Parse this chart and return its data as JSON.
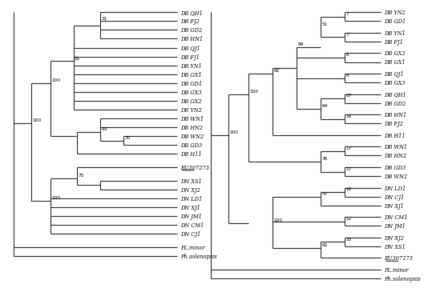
{
  "bg_color": "#ffffff",
  "line_color": "#2a2a2a",
  "text_color": "#000000",
  "lw": 0.8,
  "font_size": 4.8,
  "bs_font_size": 4.2,
  "mp_taxa": [
    "DB QH1",
    "DB FJ2",
    "DB GD2",
    "DB HN1",
    "DB QJ1",
    "DB FJ1",
    "DB YN1",
    "DB GX1",
    "DB GD1",
    "DB GX3",
    "DB GX2",
    "DB YN2",
    "DB WN1",
    "DB HN2",
    "DB WN2",
    "DB GD3",
    "DB H11",
    "EU307273",
    "DN XS1",
    "DN XJ2",
    "DN LD1",
    "DN XJ1",
    "DN JM1",
    "DN CM1",
    "DN CJ1",
    "PL.minor",
    "Ph.solenopsis"
  ],
  "mp_gaps_after": [
    16,
    17,
    24
  ],
  "nj_taxa": [
    "DB YN2",
    "DB GD1",
    "DB YN1",
    "DB FJ1",
    "DB GX2",
    "DB GX1",
    "DB QJ1",
    "DB GX3",
    "DB QH1",
    "DB GD2",
    "DB HN1",
    "DB FJ2",
    "DB H11",
    "DB WN1",
    "DB HN2",
    "DB GD3",
    "DB WN2",
    "DN LD1",
    "DN CJ1",
    "DN XJ1",
    "DN CM1",
    "DN JM1",
    "DN XJ2",
    "DN XS1",
    "EU307273",
    "PL.minor",
    "Ph.solenopsis"
  ],
  "nj_gaps_after": [
    1,
    3,
    5,
    7,
    9,
    11,
    12,
    14,
    16,
    19,
    21,
    23,
    24
  ],
  "underlined": [
    "EU307273"
  ],
  "italic_labels": [
    "DB QH1",
    "DB FJ2",
    "DB GD2",
    "DB HN1",
    "DB QJ1",
    "DB FJ1",
    "DB YN1",
    "DB GX1",
    "DB GD1",
    "DB GX3",
    "DB GX2",
    "DB YN2",
    "DB WN1",
    "DB HN2",
    "DB WN2",
    "DB GD3",
    "DB H11",
    "EU307273",
    "DN XS1",
    "DN XJ2",
    "DN LD1",
    "DN XJ1",
    "DN JM1",
    "DN CM1",
    "DN CJ1",
    "PL.minor",
    "Ph.solenopsis",
    "DB YN2",
    "DB GD1",
    "DB YN1",
    "DB FJ1",
    "DB GX2",
    "DB GX1",
    "DB QJ1",
    "DB GX3",
    "DB QH1",
    "DB GD2",
    "DB HN1",
    "DB FJ2"
  ]
}
